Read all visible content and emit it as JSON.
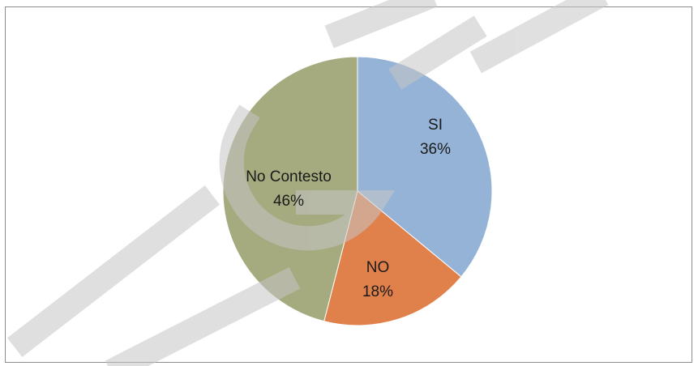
{
  "chart_data": {
    "type": "pie",
    "slices": [
      {
        "label": "SI",
        "value": 36,
        "value_label": "36%",
        "color": "#95b3d7"
      },
      {
        "label": "NO",
        "value": 18,
        "value_label": "18%",
        "color": "#e0804a"
      },
      {
        "label": "No Contesto",
        "value": 46,
        "value_label": "46%",
        "color": "#a5ab7f"
      }
    ],
    "start": "top, clockwise",
    "legend": "none"
  },
  "watermark": {
    "text": "DEF-T-G",
    "color": "#bfbfbf"
  }
}
